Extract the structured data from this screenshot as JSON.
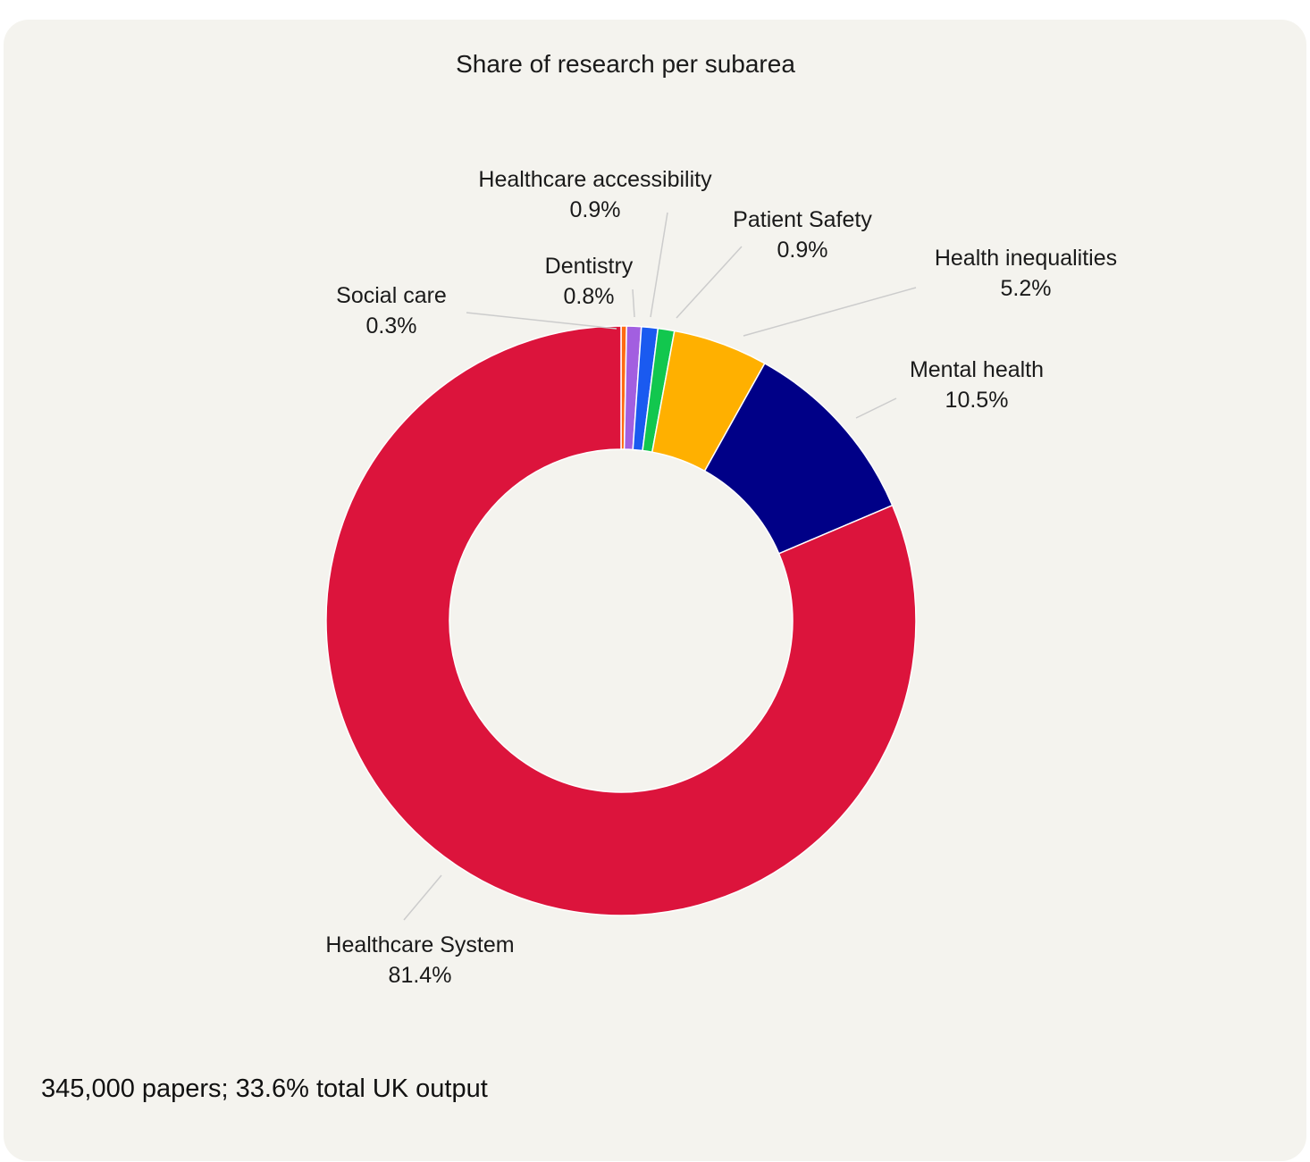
{
  "chart_data": {
    "type": "pie",
    "title": "Share of research per subarea",
    "subtitle": "345,000 papers; 33.6% total UK output",
    "donut": true,
    "slices": [
      {
        "label": "Social care",
        "value": 0.3,
        "display": "0.3%",
        "color": "#ff6a13"
      },
      {
        "label": "Dentistry",
        "value": 0.8,
        "display": "0.8%",
        "color": "#a25fe0"
      },
      {
        "label": "Healthcare accessibility",
        "value": 0.9,
        "display": "0.9%",
        "color": "#1a5af0"
      },
      {
        "label": "Patient Safety",
        "value": 0.9,
        "display": "0.9%",
        "color": "#12c74e"
      },
      {
        "label": "Health inequalities",
        "value": 5.2,
        "display": "5.2%",
        "color": "#ffb000"
      },
      {
        "label": "Mental health",
        "value": 10.5,
        "display": "10.5%",
        "color": "#000087"
      },
      {
        "label": "Healthcare System",
        "value": 81.4,
        "display": "81.4%",
        "color": "#dc143c"
      }
    ]
  }
}
